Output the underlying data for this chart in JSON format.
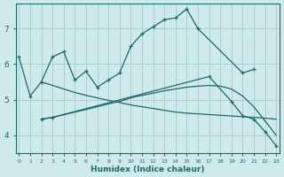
{
  "xlabel": "Humidex (Indice chaleur)",
  "background_color": "#ceeaea",
  "grid_color": "#aacfcf",
  "line_color": "#1a6b6b",
  "x_ticks": [
    0,
    1,
    2,
    3,
    4,
    5,
    6,
    7,
    8,
    9,
    10,
    11,
    12,
    13,
    14,
    15,
    16,
    17,
    18,
    19,
    20,
    21,
    22,
    23
  ],
  "y_ticks": [
    4,
    5,
    6,
    7
  ],
  "ylim": [
    3.5,
    7.7
  ],
  "xlim": [
    -0.3,
    23.3
  ],
  "line1_x": [
    0,
    1,
    2,
    3,
    4,
    5,
    6,
    7,
    8,
    9,
    10,
    11,
    12,
    13,
    14,
    15,
    16,
    20,
    21
  ],
  "line1_y": [
    6.2,
    5.1,
    5.5,
    6.2,
    6.35,
    5.55,
    5.8,
    5.35,
    5.55,
    5.75,
    6.5,
    6.85,
    7.05,
    7.25,
    7.3,
    7.55,
    7.0,
    5.75,
    5.85
  ],
  "line2_x": [
    2,
    3,
    17,
    19,
    20,
    21,
    22,
    23
  ],
  "line2_y": [
    4.45,
    4.5,
    5.65,
    4.95,
    4.55,
    4.45,
    4.1,
    3.7
  ],
  "line3_x": [
    2,
    3,
    5,
    6,
    7,
    8,
    9,
    10,
    11,
    12,
    13,
    14,
    15,
    16,
    17,
    18,
    19,
    20,
    21,
    22,
    23
  ],
  "line3_y": [
    4.45,
    4.5,
    4.65,
    4.72,
    4.8,
    4.88,
    4.95,
    5.05,
    5.12,
    5.18,
    5.25,
    5.3,
    5.35,
    5.38,
    5.4,
    5.38,
    5.3,
    5.1,
    4.8,
    4.4,
    4.0
  ],
  "line4_x": [
    2,
    3,
    4,
    5,
    6,
    7,
    8,
    9,
    10,
    11,
    12,
    13,
    14,
    15,
    16,
    17,
    18,
    19,
    20,
    21,
    22,
    23
  ],
  "line4_y": [
    5.5,
    5.4,
    5.3,
    5.2,
    5.12,
    5.05,
    4.98,
    4.92,
    4.85,
    4.8,
    4.75,
    4.7,
    4.65,
    4.62,
    4.6,
    4.58,
    4.56,
    4.54,
    4.52,
    4.5,
    4.48,
    4.45
  ]
}
